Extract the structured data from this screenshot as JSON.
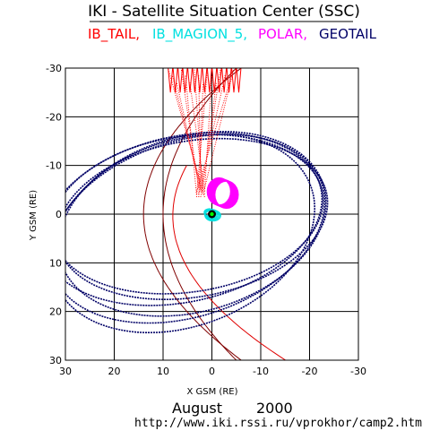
{
  "chart_data": {
    "type": "scatter",
    "title": "IKI - Satellite Situation Center (SSC)",
    "xlabel": "X GSM (RE)",
    "ylabel": "Y GSM (RE)",
    "xlim": [
      30,
      -30
    ],
    "ylim": [
      -30,
      30
    ],
    "x_ticks": [
      "30",
      "20",
      "10",
      "0",
      "-10",
      "-20",
      "-30"
    ],
    "y_ticks": [
      "-30",
      "-20",
      "-10",
      "0",
      "10",
      "20",
      "30"
    ],
    "grid": true,
    "legend_placement": "top",
    "footer": {
      "month": "August",
      "year": "2000",
      "url": "http://www.iki.rssi.ru/vprokhor/camp2.htm"
    },
    "series": [
      {
        "name": "IB_TAIL,",
        "color": "#ff0000"
      },
      {
        "name": "IB_MAGION_5,",
        "color": "#00e0e0"
      },
      {
        "name": "POLAR,",
        "color": "#ff00ff"
      },
      {
        "name": "GEOTAIL",
        "color": "#000066"
      }
    ],
    "boundaries": [
      {
        "name": "magnetopause",
        "color": "#800000"
      },
      {
        "name": "bow-shock",
        "color": "#800000"
      },
      {
        "name": "red-boundary",
        "color": "#e00000"
      }
    ]
  }
}
